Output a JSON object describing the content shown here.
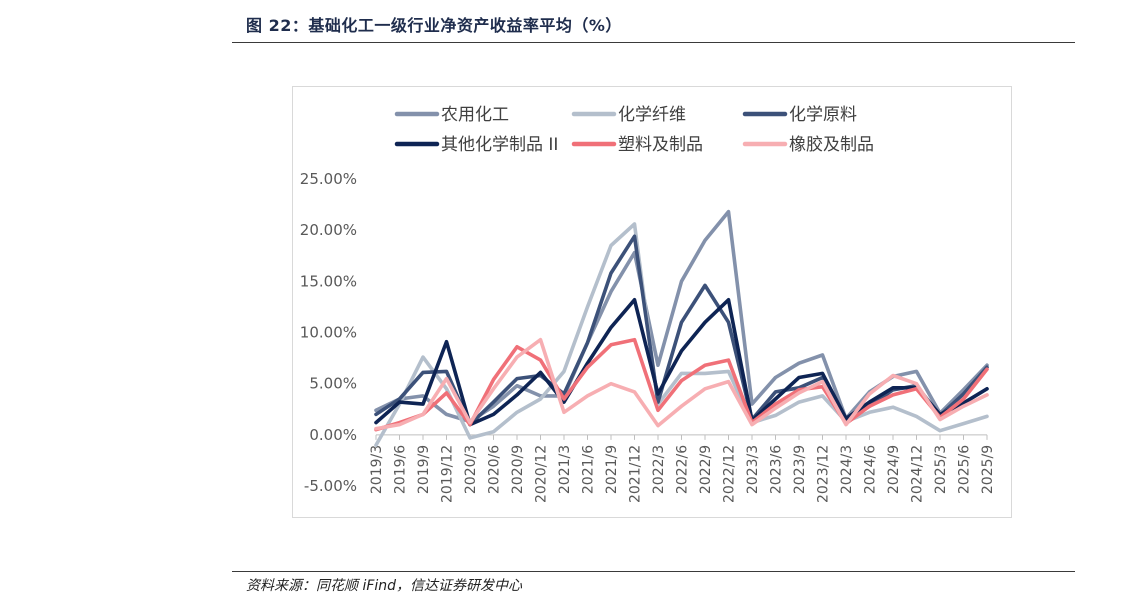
{
  "header": {
    "title": "图 22：基础化工一级行业净资产收益率平均（%）"
  },
  "footer": {
    "source": "资料来源：同花顺 iFind，信达证券研发中心"
  },
  "chart_data": {
    "type": "line",
    "ylim": [
      -5,
      25
    ],
    "yticks": [
      25,
      20,
      15,
      10,
      5,
      0,
      -5
    ],
    "ytick_labels": [
      "25.00%",
      "20.00%",
      "15.00%",
      "10.00%",
      "5.00%",
      "0.00%",
      "-5.00%"
    ],
    "legend_position": "top",
    "grid": false,
    "x": [
      "2019/3",
      "2019/6",
      "2019/9",
      "2019/12",
      "2020/3",
      "2020/6",
      "2020/9",
      "2020/12",
      "2021/3",
      "2021/6",
      "2021/9",
      "2021/12",
      "2022/3",
      "2022/6",
      "2022/9",
      "2022/12",
      "2023/3",
      "2023/6",
      "2023/9",
      "2023/12",
      "2024/3",
      "2024/6",
      "2024/9",
      "2024/12",
      "2025/3",
      "2025/6",
      "2025/9"
    ],
    "series": [
      {
        "name": "农用化工",
        "color": "#8391ab",
        "values": [
          2.4,
          3.5,
          3.8,
          2.0,
          1.3,
          2.8,
          4.8,
          3.8,
          3.8,
          9.0,
          14.0,
          17.8,
          6.8,
          15.0,
          19.0,
          21.8,
          3.0,
          5.6,
          7.0,
          7.8,
          1.6,
          4.2,
          5.7,
          6.2,
          2.1,
          4.4,
          6.8
        ]
      },
      {
        "name": "化学纤维",
        "color": "#b4bfcc",
        "values": [
          -1.0,
          3.0,
          7.6,
          4.5,
          -0.3,
          0.3,
          2.2,
          3.5,
          6.2,
          12.5,
          18.5,
          20.6,
          3.0,
          6.0,
          6.0,
          6.2,
          1.2,
          1.9,
          3.2,
          3.8,
          1.3,
          2.2,
          2.7,
          1.8,
          0.4,
          1.1,
          1.8
        ]
      },
      {
        "name": "化学原料",
        "color": "#3c5179",
        "values": [
          2.0,
          3.5,
          6.1,
          6.2,
          1.0,
          3.2,
          5.5,
          5.8,
          4.0,
          9.0,
          15.8,
          19.4,
          3.2,
          11.0,
          14.6,
          11.0,
          1.5,
          4.2,
          4.6,
          5.6,
          1.4,
          2.8,
          4.4,
          4.8,
          1.9,
          4.0,
          6.6
        ]
      },
      {
        "name": "其他化学制品 II",
        "color": "#0e2454",
        "values": [
          1.2,
          3.2,
          3.0,
          9.1,
          1.0,
          2.0,
          3.9,
          6.1,
          3.2,
          7.0,
          10.5,
          13.2,
          4.0,
          8.2,
          11.0,
          13.2,
          1.4,
          3.5,
          5.6,
          6.0,
          1.6,
          3.2,
          4.6,
          4.6,
          2.0,
          3.1,
          4.5
        ]
      },
      {
        "name": "塑料及制品",
        "color": "#f07078",
        "values": [
          0.5,
          1.2,
          2.0,
          4.1,
          1.0,
          5.4,
          8.6,
          7.3,
          3.5,
          6.6,
          8.8,
          9.3,
          2.4,
          5.3,
          6.8,
          7.3,
          1.2,
          3.0,
          4.4,
          4.7,
          1.1,
          2.8,
          3.9,
          4.5,
          1.7,
          3.5,
          6.4
        ]
      },
      {
        "name": "橡胶及制品",
        "color": "#f7aeb2",
        "values": [
          0.6,
          1.0,
          2.0,
          5.5,
          1.2,
          4.5,
          7.6,
          9.3,
          2.2,
          3.8,
          5.0,
          4.2,
          0.9,
          2.8,
          4.5,
          5.2,
          1.0,
          2.6,
          4.1,
          5.2,
          1.0,
          4.0,
          5.8,
          5.0,
          1.5,
          2.8,
          3.9
        ]
      }
    ]
  }
}
